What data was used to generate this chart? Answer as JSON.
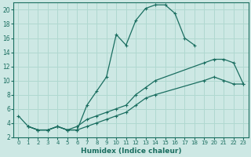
{
  "xlabel": "Humidex (Indice chaleur)",
  "bg_color": "#cde8e4",
  "grid_color": "#b0d8d0",
  "line_color": "#1a6e60",
  "xlim": [
    -0.5,
    23.5
  ],
  "ylim": [
    2,
    21
  ],
  "xticks": [
    0,
    1,
    2,
    3,
    4,
    5,
    6,
    7,
    8,
    9,
    10,
    11,
    12,
    13,
    14,
    15,
    16,
    17,
    18,
    19,
    20,
    21,
    22,
    23
  ],
  "yticks": [
    2,
    4,
    6,
    8,
    10,
    12,
    14,
    16,
    18,
    20
  ],
  "curve1_x": [
    0,
    1,
    2,
    3,
    4,
    5,
    6,
    7,
    8,
    9,
    10,
    11,
    12,
    13,
    14,
    15,
    16,
    17,
    18
  ],
  "curve1_y": [
    5,
    3.5,
    3,
    3,
    3.5,
    3,
    3,
    6.5,
    8.5,
    10.5,
    16.5,
    15,
    18.5,
    20.2,
    20.7,
    20.7,
    19.5,
    16,
    15
  ],
  "curve2_x": [
    1,
    2,
    3,
    4,
    5,
    6,
    7,
    8,
    9,
    10,
    11,
    12,
    13,
    14,
    19,
    20,
    21,
    22,
    23
  ],
  "curve2_y": [
    3.5,
    3,
    3,
    3.5,
    3,
    3.5,
    4.5,
    5,
    5.5,
    6,
    6.5,
    8,
    9,
    10,
    12.5,
    13,
    13,
    12.5,
    9.5
  ],
  "curve3_x": [
    1,
    2,
    3,
    4,
    5,
    6,
    7,
    8,
    9,
    10,
    11,
    12,
    13,
    14,
    19,
    20,
    21,
    22,
    23
  ],
  "curve3_y": [
    3.5,
    3,
    3,
    3.5,
    3,
    3,
    3.5,
    4,
    4.5,
    5,
    5.5,
    6.5,
    7.5,
    8,
    10,
    10.5,
    10,
    9.5,
    9.5
  ]
}
